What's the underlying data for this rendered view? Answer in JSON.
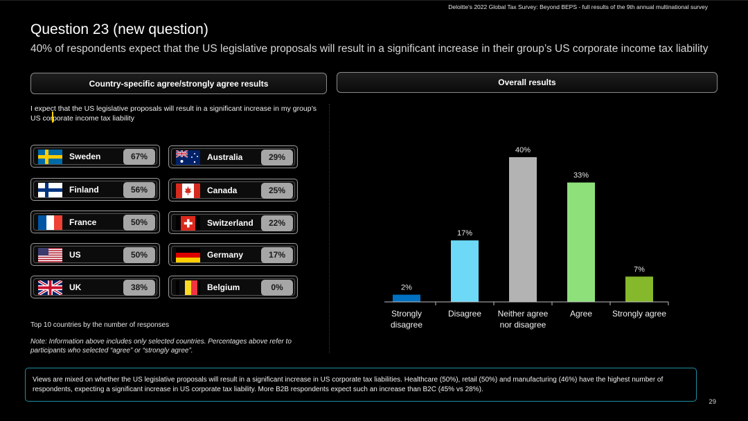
{
  "header": {
    "topline": "Deloitte's 2022 Global Tax Survey: Beyond BEPS - full results of the 9th annual multinational survey",
    "title": "Question 23 (new question)",
    "subtitle": "40% of respondents expect that the US legislative proposals will result in a significant increase in their group’s US corporate income tax liability"
  },
  "left_panel": {
    "header": "Country-specific agree/strongly agree results",
    "question": "I expect that the US legislative proposals will result in a significant increase in my group’s US corporate income tax liability",
    "countries": [
      {
        "name": "Sweden",
        "pct": "67%",
        "flag": "sweden"
      },
      {
        "name": "Finland",
        "pct": "56%",
        "flag": "finland"
      },
      {
        "name": "France",
        "pct": "50%",
        "flag": "france"
      },
      {
        "name": "US",
        "pct": "50%",
        "flag": "us"
      },
      {
        "name": "UK",
        "pct": "38%",
        "flag": "uk"
      },
      {
        "name": "Australia",
        "pct": "29%",
        "flag": "australia"
      },
      {
        "name": "Canada",
        "pct": "25%",
        "flag": "canada"
      },
      {
        "name": "Switzerland",
        "pct": "22%",
        "flag": "switzerland"
      },
      {
        "name": "Germany",
        "pct": "17%",
        "flag": "germany"
      },
      {
        "name": "Belgium",
        "pct": "0%",
        "flag": "belgium"
      }
    ],
    "top_note": "Top 10 countries by the number of responses",
    "note": "Note: Information above includes only selected countries. Percentages above refer to participants who selected “agree” or “strongly agree”."
  },
  "right_panel": {
    "header": "Overall results"
  },
  "chart_data": {
    "type": "bar",
    "categories": [
      "Strongly disagree",
      "Disagree",
      "Neither agree nor disagree",
      "Agree",
      "Strongly agree"
    ],
    "category_lines": [
      [
        "Strongly",
        "disagree"
      ],
      [
        "Disagree"
      ],
      [
        "Neither agree",
        "nor disagree"
      ],
      [
        "Agree"
      ],
      [
        "Strongly agree"
      ]
    ],
    "values": [
      2,
      17,
      40,
      33,
      7
    ],
    "value_labels": [
      "2%",
      "17%",
      "40%",
      "33%",
      "7%"
    ],
    "colors": [
      "#0070c0",
      "#6dd9f7",
      "#b3b3b3",
      "#8ee07a",
      "#86b82b"
    ],
    "title": "",
    "xlabel": "",
    "ylabel": "",
    "ylim": [
      0,
      40
    ],
    "grid": false,
    "legend": "none"
  },
  "footer": {
    "text": "Views are mixed on whether the US legislative proposals will result in a significant increase in US corporate tax liabilities. Healthcare (50%), retail (50%) and manufacturing (46%) have the highest number of respondents, expecting a significant increase in US corporate tax liability. More B2B respondents expect such an increase than B2C (45% vs 28%).",
    "page_number": "29"
  }
}
